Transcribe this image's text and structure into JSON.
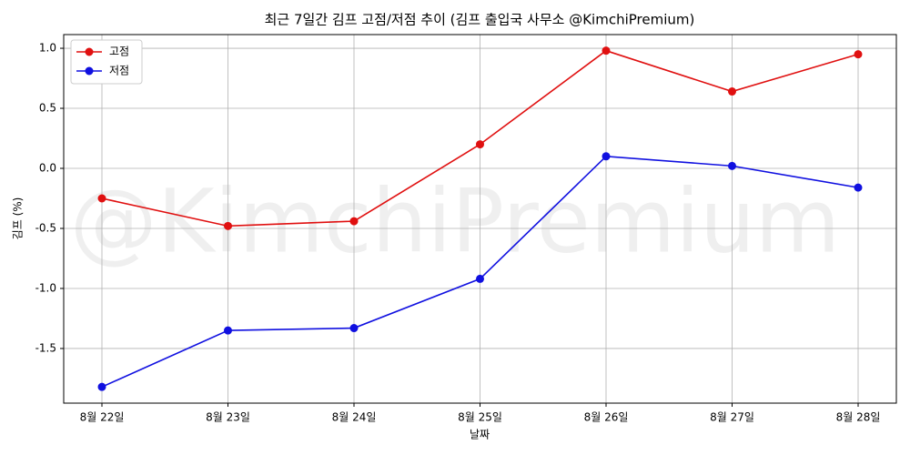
{
  "chart_data": {
    "type": "line",
    "title": "최근 7일간 김프 고점/저점 추이 (김프 출입국 사무소 @KimchiPremium)",
    "watermark": "@KimchiPremium",
    "x_label": "날짜",
    "y_label": "김프 (%)",
    "categories": [
      "8월 22일",
      "8월 23일",
      "8월 24일",
      "8월 25일",
      "8월 26일",
      "8월 27일",
      "8월 28일"
    ],
    "series": [
      {
        "name": "고점",
        "color": "#e01010",
        "values": [
          -0.25,
          -0.48,
          -0.44,
          0.2,
          0.98,
          0.64,
          0.95
        ]
      },
      {
        "name": "저점",
        "color": "#1010e0",
        "values": [
          -1.82,
          -1.35,
          -1.33,
          -0.92,
          0.1,
          0.02,
          -0.16
        ]
      }
    ],
    "ylim": [
      -1.955,
      1.114
    ],
    "yticks": [
      {
        "value": 1.0,
        "label": "1.0"
      },
      0.5,
      {
        "value": 0.0,
        "label": "0.0"
      },
      -0.5,
      {
        "value": -1.0,
        "label": "-1.0"
      },
      -1.5
    ],
    "grid": true,
    "legend": "upper-left"
  }
}
